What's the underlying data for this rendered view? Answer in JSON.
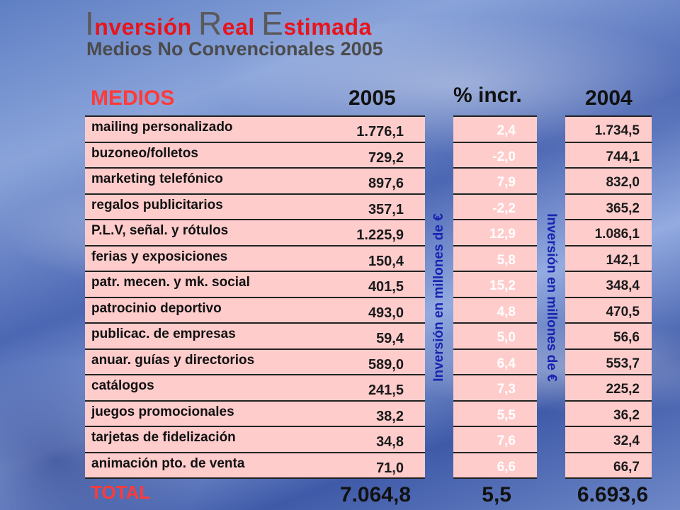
{
  "title": {
    "c1": "I",
    "r1": "nversión ",
    "c2": "R",
    "r2": "eal ",
    "c3": "E",
    "r3": "stimada"
  },
  "subtitle": "Medios No Convencionales  2005",
  "headers": {
    "medios": "MEDIOS",
    "y2005": "2005",
    "incr": "% incr.",
    "y2004": "2004"
  },
  "unit_label": "Inversión en millones de €",
  "rows": [
    {
      "name": "mailing personalizado",
      "v2005": "1.776,1",
      "incr": "2,4",
      "v2004": "1.734,5"
    },
    {
      "name": "buzoneo/folletos",
      "v2005": "729,2",
      "incr": "-2,0",
      "v2004": "744,1"
    },
    {
      "name": "marketing telefónico",
      "v2005": "897,6",
      "incr": "7,9",
      "v2004": "832,0"
    },
    {
      "name": "regalos publicitarios",
      "v2005": "357,1",
      "incr": "-2,2",
      "v2004": "365,2"
    },
    {
      "name": "P.L.V, señal. y rótulos",
      "v2005": "1.225,9",
      "incr": "12,9",
      "v2004": "1.086,1"
    },
    {
      "name": "ferias y exposiciones",
      "v2005": "150,4",
      "incr": "5,8",
      "v2004": "142,1"
    },
    {
      "name": "patr. mecen. y mk. social",
      "v2005": "401,5",
      "incr": "15,2",
      "v2004": "348,4"
    },
    {
      "name": "patrocinio deportivo",
      "v2005": "493,0",
      "incr": "4,8",
      "v2004": "470,5"
    },
    {
      "name": "publicac. de empresas",
      "v2005": "59,4",
      "incr": "5,0",
      "v2004": "56,6"
    },
    {
      "name": "anuar. guías y directorios",
      "v2005": "589,0",
      "incr": "6,4",
      "v2004": "553,7"
    },
    {
      "name": "catálogos",
      "v2005": "241,5",
      "incr": "7,3",
      "v2004": "225,2"
    },
    {
      "name": "juegos promocionales",
      "v2005": "38,2",
      "incr": "5,5",
      "v2004": "36,2"
    },
    {
      "name": "tarjetas de fidelización",
      "v2005": "34,8",
      "incr": "7,6",
      "v2004": "32,4"
    },
    {
      "name": "animación pto. de venta",
      "v2005": "71,0",
      "incr": "6,6",
      "v2004": "66,7"
    }
  ],
  "total": {
    "label": "TOTAL",
    "v2005": "7.064,8",
    "incr": "5,5",
    "v2004": "6.693,6"
  },
  "colors": {
    "accent_red": "#e8141c",
    "band_pink": "#ffcccc",
    "unit_blue": "#1a22b0"
  }
}
